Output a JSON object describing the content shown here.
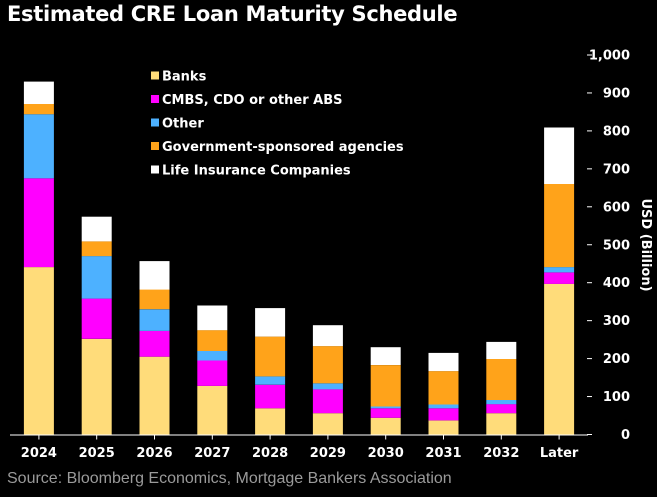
{
  "header": {
    "title": "Estimated CRE Loan Maturity Schedule"
  },
  "footer": {
    "source": "Source: Bloomberg Economics, Mortgage Bankers Association"
  },
  "chart_data": {
    "type": "bar",
    "stacked": true,
    "title": "Estimated CRE Loan Maturity Schedule",
    "xlabel": "",
    "ylabel": "USD (Billion)",
    "ylim": [
      0,
      1000
    ],
    "yticks": [
      0,
      100,
      200,
      300,
      400,
      500,
      600,
      700,
      800,
      900,
      1000
    ],
    "ytick_labels": [
      "0",
      "100",
      "200",
      "300",
      "400",
      "500",
      "600",
      "700",
      "800",
      "900",
      "1,000"
    ],
    "y_axis_position": "right",
    "grid": false,
    "legend_position": "top-left",
    "categories": [
      "2024",
      "2025",
      "2026",
      "2027",
      "2028",
      "2029",
      "2030",
      "2031",
      "2032",
      "Later"
    ],
    "series": [
      {
        "name": "Banks",
        "color": "#ffdc7a",
        "values": [
          441,
          252,
          205,
          128,
          69,
          56,
          44,
          37,
          56,
          397
        ]
      },
      {
        "name": "CMBS, CDO or other ABS",
        "color": "#ff00ff",
        "values": [
          234,
          106,
          68,
          67,
          62,
          63,
          25,
          32,
          24,
          30
        ]
      },
      {
        "name": "Other",
        "color": "#4db1ff",
        "values": [
          169,
          112,
          57,
          25,
          22,
          16,
          5,
          10,
          11,
          14
        ]
      },
      {
        "name": "Government-sponsored agencies",
        "color": "#ffa31a",
        "values": [
          27,
          39,
          52,
          55,
          105,
          98,
          109,
          88,
          108,
          219
        ]
      },
      {
        "name": "Life Insurance Companies",
        "color": "#ffffff",
        "values": [
          59,
          65,
          75,
          65,
          75,
          55,
          47,
          48,
          45,
          149
        ]
      }
    ]
  }
}
